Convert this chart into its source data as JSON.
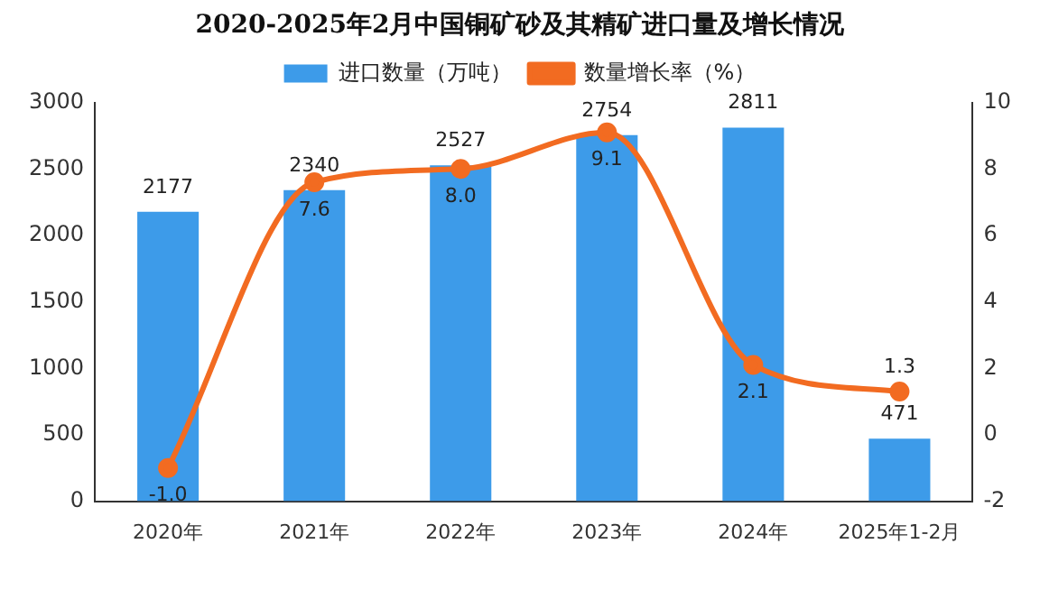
{
  "chart_data": {
    "type": "bar",
    "title": "2020-2025年2月中国铜矿砂及其精矿进口量及增长情况",
    "categories": [
      "2020年",
      "2021年",
      "2022年",
      "2023年",
      "2024年",
      "2025年1-2月"
    ],
    "series": [
      {
        "name": "进口数量（万吨）",
        "color": "#3d9be9",
        "values": [
          2177,
          2340,
          2527,
          2754,
          2811,
          471
        ],
        "value_labels": [
          "2177",
          "2340",
          "2527",
          "2754",
          "2811",
          "471"
        ]
      },
      {
        "name": "数量增长率（%）",
        "type": "line",
        "axis": "y2",
        "color": "#f26b21",
        "values": [
          -1.0,
          7.6,
          8.0,
          9.1,
          2.1,
          1.3
        ],
        "value_labels": [
          "-1.0",
          "7.6",
          "8.0",
          "9.1",
          "2.1",
          "1.3"
        ]
      }
    ],
    "ylim": [
      0,
      3000
    ],
    "yticks": [
      0,
      500,
      1000,
      1500,
      2000,
      2500,
      3000
    ],
    "y2lim": [
      -2,
      10
    ],
    "y2ticks": [
      -2,
      0,
      2,
      4,
      6,
      8,
      10
    ],
    "grid": false,
    "legend": "top",
    "marker": "circle",
    "line_style": "solid"
  }
}
